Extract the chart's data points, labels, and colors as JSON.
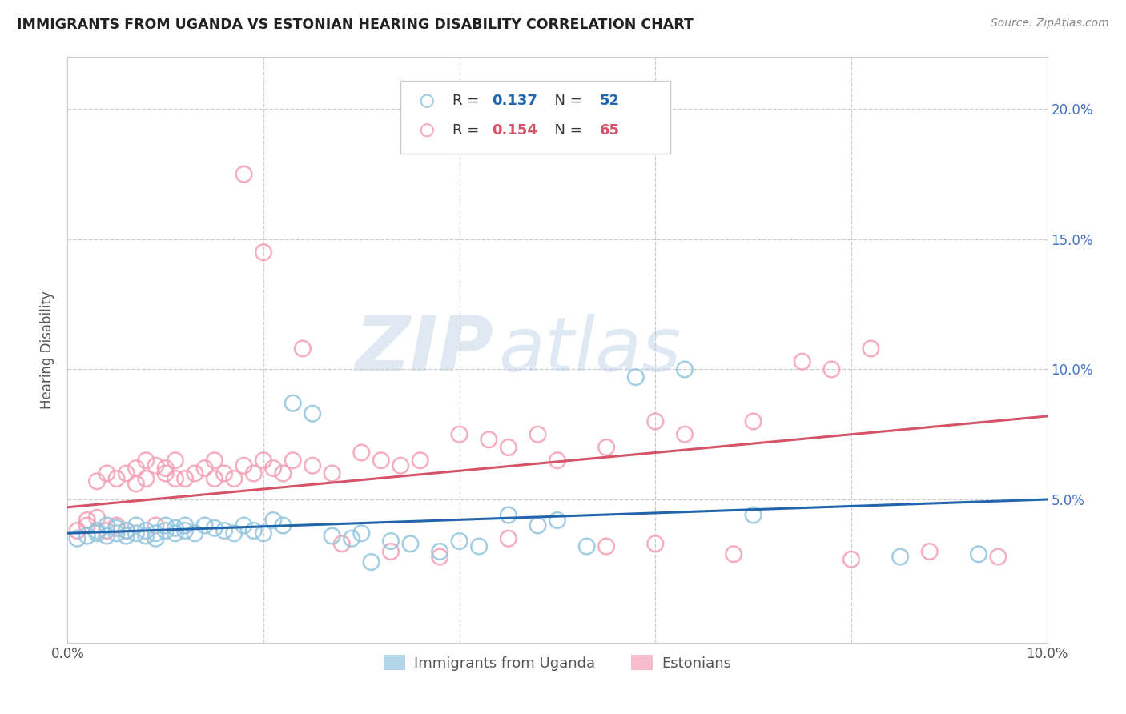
{
  "title": "IMMIGRANTS FROM UGANDA VS ESTONIAN HEARING DISABILITY CORRELATION CHART",
  "source": "Source: ZipAtlas.com",
  "ylabel_label": "Hearing Disability",
  "xlim": [
    0.0,
    0.1
  ],
  "ylim": [
    -0.005,
    0.22
  ],
  "legend1_r": "0.137",
  "legend1_n": "52",
  "legend2_r": "0.154",
  "legend2_n": "65",
  "blue_color": "#92c5de",
  "pink_color": "#f4a0b5",
  "blue_line_color": "#2166ac",
  "pink_line_color": "#d6546a",
  "watermark_zip": "ZIP",
  "watermark_atlas": "atlas",
  "blue_scatter_x": [
    0.001,
    0.002,
    0.003,
    0.003,
    0.004,
    0.004,
    0.005,
    0.005,
    0.006,
    0.006,
    0.007,
    0.007,
    0.008,
    0.008,
    0.009,
    0.009,
    0.01,
    0.01,
    0.011,
    0.011,
    0.012,
    0.012,
    0.013,
    0.014,
    0.015,
    0.016,
    0.017,
    0.018,
    0.019,
    0.02,
    0.021,
    0.022,
    0.023,
    0.025,
    0.027,
    0.029,
    0.03,
    0.031,
    0.033,
    0.035,
    0.038,
    0.04,
    0.042,
    0.045,
    0.048,
    0.05,
    0.053,
    0.058,
    0.063,
    0.07,
    0.085,
    0.093
  ],
  "blue_scatter_y": [
    0.035,
    0.036,
    0.037,
    0.038,
    0.036,
    0.04,
    0.037,
    0.039,
    0.038,
    0.036,
    0.037,
    0.04,
    0.038,
    0.036,
    0.037,
    0.035,
    0.038,
    0.04,
    0.039,
    0.037,
    0.038,
    0.04,
    0.037,
    0.04,
    0.039,
    0.038,
    0.037,
    0.04,
    0.038,
    0.037,
    0.042,
    0.04,
    0.087,
    0.083,
    0.036,
    0.035,
    0.037,
    0.026,
    0.034,
    0.033,
    0.03,
    0.034,
    0.032,
    0.044,
    0.04,
    0.042,
    0.032,
    0.097,
    0.1,
    0.044,
    0.028,
    0.029
  ],
  "pink_scatter_x": [
    0.001,
    0.002,
    0.002,
    0.003,
    0.003,
    0.004,
    0.004,
    0.005,
    0.005,
    0.006,
    0.006,
    0.007,
    0.007,
    0.008,
    0.008,
    0.009,
    0.009,
    0.01,
    0.01,
    0.011,
    0.011,
    0.012,
    0.013,
    0.014,
    0.015,
    0.015,
    0.016,
    0.017,
    0.018,
    0.019,
    0.02,
    0.021,
    0.022,
    0.023,
    0.025,
    0.027,
    0.03,
    0.032,
    0.034,
    0.036,
    0.04,
    0.043,
    0.045,
    0.048,
    0.05,
    0.055,
    0.06,
    0.063,
    0.07,
    0.075,
    0.078,
    0.082,
    0.018,
    0.02,
    0.024,
    0.028,
    0.033,
    0.038,
    0.045,
    0.055,
    0.06,
    0.068,
    0.08,
    0.088,
    0.095
  ],
  "pink_scatter_y": [
    0.038,
    0.04,
    0.042,
    0.043,
    0.057,
    0.038,
    0.06,
    0.04,
    0.058,
    0.038,
    0.06,
    0.062,
    0.056,
    0.058,
    0.065,
    0.04,
    0.063,
    0.06,
    0.062,
    0.058,
    0.065,
    0.058,
    0.06,
    0.062,
    0.058,
    0.065,
    0.06,
    0.058,
    0.063,
    0.06,
    0.065,
    0.062,
    0.06,
    0.065,
    0.063,
    0.06,
    0.068,
    0.065,
    0.063,
    0.065,
    0.075,
    0.073,
    0.07,
    0.075,
    0.065,
    0.07,
    0.08,
    0.075,
    0.08,
    0.103,
    0.1,
    0.108,
    0.175,
    0.145,
    0.108,
    0.033,
    0.03,
    0.028,
    0.035,
    0.032,
    0.033,
    0.029,
    0.027,
    0.03,
    0.028
  ],
  "blue_line_x0": 0.0,
  "blue_line_x1": 0.1,
  "blue_line_y0": 0.037,
  "blue_line_y1": 0.05,
  "pink_line_x0": 0.0,
  "pink_line_x1": 0.1,
  "pink_line_y0": 0.047,
  "pink_line_y1": 0.082
}
